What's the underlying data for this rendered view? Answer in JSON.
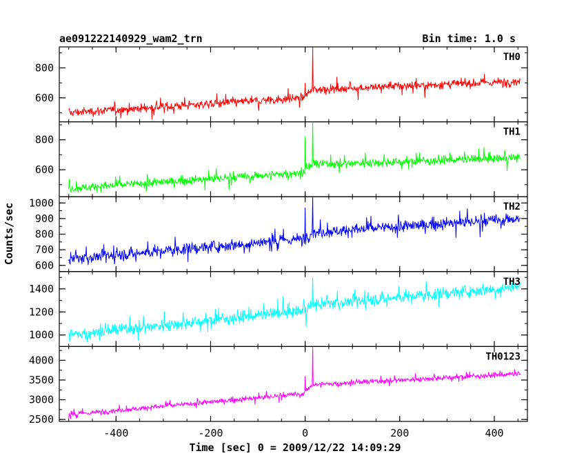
{
  "header": {
    "title": "ae091222140929_wam2_trn",
    "bin_time": "Bin time: 1.0 s"
  },
  "chart_data": {
    "type": "line",
    "title": "ae091222140929_wam2_trn",
    "xlabel": "Time [sec] 0 = 2009/12/22 14:09:29",
    "ylabel": "Counts/sec",
    "xlim": [
      -520,
      470
    ],
    "xticks": [
      -400,
      -200,
      0,
      200,
      400
    ],
    "grid": false,
    "panels": [
      {
        "name": "TH0",
        "color": "#ff0000",
        "ylim": [
          440,
          940
        ],
        "yticks": [
          600,
          800
        ],
        "trend": [
          {
            "x": -500,
            "y": 500
          },
          {
            "x": -5,
            "y": 600
          },
          {
            "x": 15,
            "y": 655
          },
          {
            "x": 455,
            "y": 710
          }
        ],
        "noise": 25,
        "x_start": -500,
        "x_end": 455,
        "spikes": [
          {
            "x": 0,
            "y": 700
          },
          {
            "x": 16,
            "y": 940
          }
        ]
      },
      {
        "name": "TH1",
        "color": "#00ff00",
        "ylim": [
          420,
          920
        ],
        "yticks": [
          600,
          800
        ],
        "trend": [
          {
            "x": -500,
            "y": 475
          },
          {
            "x": -5,
            "y": 580
          },
          {
            "x": 15,
            "y": 635
          },
          {
            "x": 455,
            "y": 680
          }
        ],
        "noise": 25,
        "x_start": -500,
        "x_end": 455,
        "spikes": [
          {
            "x": 0,
            "y": 820
          },
          {
            "x": 16,
            "y": 920
          }
        ]
      },
      {
        "name": "TH2",
        "color": "#0000ff",
        "ylim": [
          560,
          1040
        ],
        "yticks": [
          600,
          700,
          800,
          900,
          1000
        ],
        "trend": [
          {
            "x": -500,
            "y": 640
          },
          {
            "x": -5,
            "y": 770
          },
          {
            "x": 15,
            "y": 810
          },
          {
            "x": 455,
            "y": 900
          }
        ],
        "noise": 32,
        "x_start": -500,
        "x_end": 455,
        "spikes": [
          {
            "x": 0,
            "y": 970
          },
          {
            "x": 16,
            "y": 1040
          }
        ]
      },
      {
        "name": "TH3",
        "color": "#00ffff",
        "ylim": [
          900,
          1550
        ],
        "yticks": [
          1000,
          1200,
          1400
        ],
        "trend": [
          {
            "x": -500,
            "y": 1000
          },
          {
            "x": -5,
            "y": 1210
          },
          {
            "x": 15,
            "y": 1260
          },
          {
            "x": 455,
            "y": 1420
          }
        ],
        "noise": 45,
        "x_start": -500,
        "x_end": 455,
        "spikes": [
          {
            "x": 16,
            "y": 1500
          }
        ]
      },
      {
        "name": "TH0123",
        "color": "#ff00ff",
        "ylim": [
          2450,
          4350
        ],
        "yticks": [
          2500,
          3000,
          3500,
          4000
        ],
        "trend": [
          {
            "x": -500,
            "y": 2620
          },
          {
            "x": -5,
            "y": 3150
          },
          {
            "x": 15,
            "y": 3380
          },
          {
            "x": 455,
            "y": 3660
          }
        ],
        "noise": 55,
        "x_start": -500,
        "x_end": 455,
        "spikes": [
          {
            "x": 0,
            "y": 3600
          },
          {
            "x": 16,
            "y": 4350
          }
        ]
      }
    ]
  }
}
